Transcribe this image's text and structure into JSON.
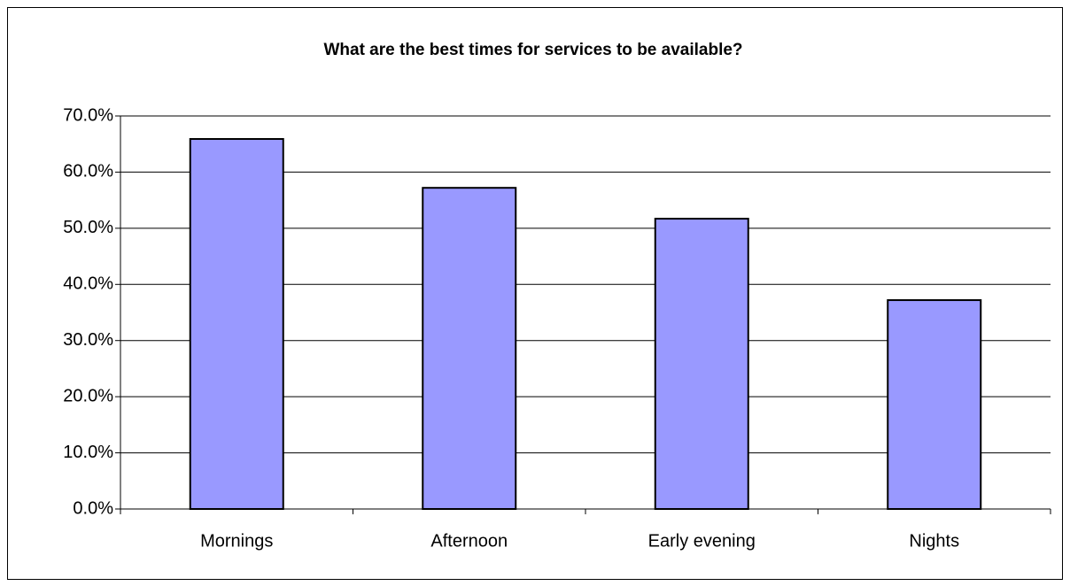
{
  "chart_data": {
    "type": "bar",
    "title": "What are the best times for services to be available?",
    "categories": [
      "Mornings",
      "Afternoon",
      "Early evening",
      "Nights"
    ],
    "values": [
      65.9,
      57.2,
      51.7,
      37.2
    ],
    "color": "#9999ff",
    "ylim": [
      0,
      70
    ],
    "yticks": [
      {
        "value": 0,
        "label": "0.0%"
      },
      {
        "value": 10,
        "label": "10.0%"
      },
      {
        "value": 20,
        "label": "20.0%"
      },
      {
        "value": 30,
        "label": "30.0%"
      },
      {
        "value": 40,
        "label": "40.0%"
      },
      {
        "value": 50,
        "label": "50.0%"
      },
      {
        "value": 60,
        "label": "60.0%"
      },
      {
        "value": 70,
        "label": "70.0%"
      }
    ],
    "grid": true
  }
}
